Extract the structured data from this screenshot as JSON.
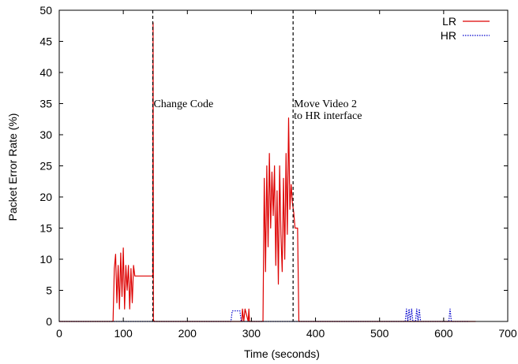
{
  "chart_data": {
    "type": "line",
    "title": "",
    "xlabel": "Time (seconds)",
    "ylabel": "Packet Error Rate (%)",
    "xlim": [
      0,
      700
    ],
    "ylim": [
      0,
      50
    ],
    "xticks": [
      0,
      100,
      200,
      300,
      400,
      500,
      600,
      700
    ],
    "yticks": [
      0,
      5,
      10,
      15,
      20,
      25,
      30,
      35,
      40,
      45,
      50
    ],
    "grid": false,
    "legend": "top-right",
    "series": [
      {
        "name": "LR",
        "color": "#dd0000",
        "style": "solid",
        "x": [
          0,
          84,
          86,
          88,
          90,
          92,
          94,
          96,
          98,
          100,
          102,
          104,
          106,
          108,
          110,
          112,
          114,
          116,
          118,
          120,
          122,
          146,
          146.5,
          147,
          148,
          150,
          270,
          272,
          285,
          286,
          288,
          290,
          295,
          296,
          297,
          298,
          300,
          315,
          318,
          320,
          322,
          324,
          326,
          328,
          330,
          332,
          334,
          336,
          338,
          340,
          342,
          344,
          346,
          348,
          350,
          352,
          354,
          356,
          358,
          360,
          362,
          364,
          366,
          368,
          370,
          372,
          374,
          376,
          378,
          380,
          400,
          500,
          600,
          650
        ],
        "y": [
          0,
          0,
          8.5,
          10.8,
          3,
          9,
          2,
          11,
          4,
          11.8,
          2,
          9,
          5,
          9,
          2,
          8.5,
          3,
          9,
          7.3,
          7.3,
          7.3,
          7.3,
          48,
          0.3,
          0,
          0,
          0,
          0,
          0,
          2,
          0,
          2,
          0,
          2,
          0,
          0,
          0,
          0,
          0,
          23,
          8,
          25,
          12,
          27,
          15,
          24,
          17,
          25,
          9,
          21,
          6,
          25,
          14,
          8,
          23,
          10,
          27,
          14,
          32.7,
          18,
          22,
          19,
          17.5,
          15,
          15,
          15,
          0,
          0,
          0,
          0,
          0,
          0,
          0,
          0
        ]
      },
      {
        "name": "HR",
        "color": "#0000cc",
        "style": "dotted",
        "x": [
          0,
          268,
          270,
          272,
          276,
          278,
          282,
          284,
          290,
          540,
          542,
          544,
          546,
          548,
          550,
          552,
          556,
          558,
          560,
          562,
          564,
          608,
          610,
          612,
          614,
          640
        ],
        "y": [
          0,
          0,
          1.7,
          1.7,
          1.7,
          1.7,
          1.7,
          0,
          0,
          0,
          2,
          0,
          2,
          0,
          2,
          0,
          0,
          2,
          0,
          2,
          0,
          0,
          2,
          0,
          0,
          0
        ]
      }
    ],
    "markers": [
      {
        "x": 146,
        "label_lines": [
          "Change Code"
        ]
      },
      {
        "x": 365,
        "label_lines": [
          "Move Video 2",
          "to HR interface"
        ]
      }
    ]
  }
}
